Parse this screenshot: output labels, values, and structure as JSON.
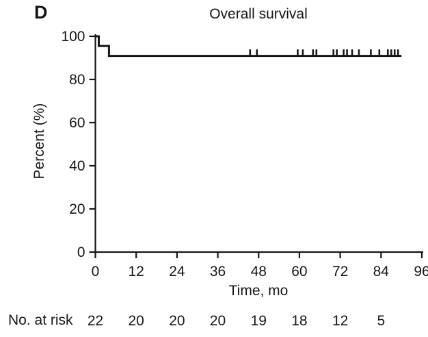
{
  "panel_label": "D",
  "figure": {
    "background": "#ffffff",
    "ink_color": "#161616"
  },
  "chart_data": {
    "type": "line",
    "subtype": "kaplan_meier_step",
    "title": "Overall survival",
    "xlabel": "Time, mo",
    "ylabel": "Percent (%)",
    "xlim": [
      0,
      96
    ],
    "ylim": [
      0,
      100
    ],
    "xticks": [
      0,
      12,
      24,
      36,
      48,
      60,
      72,
      84,
      96
    ],
    "yticks": [
      0,
      20,
      40,
      60,
      80,
      100
    ],
    "grid": false,
    "legend": "none",
    "series": [
      {
        "name": "Overall survival",
        "color": "#161616",
        "steps": [
          {
            "time": 0,
            "percent": 100
          },
          {
            "time": 1,
            "percent": 95.5
          },
          {
            "time": 4,
            "percent": 90.9
          }
        ],
        "plateau_percent": 90.9,
        "end_time": 90,
        "censor_times": [
          45.5,
          47.5,
          59.5,
          61,
          64,
          65,
          70,
          71,
          73,
          74,
          75.5,
          77.5,
          81,
          83.5,
          86,
          87,
          88,
          89
        ]
      }
    ],
    "at_risk": {
      "label": "No. at risk",
      "times": [
        0,
        12,
        24,
        36,
        48,
        60,
        72,
        84
      ],
      "counts": [
        22,
        20,
        20,
        20,
        19,
        18,
        12,
        5
      ]
    }
  }
}
